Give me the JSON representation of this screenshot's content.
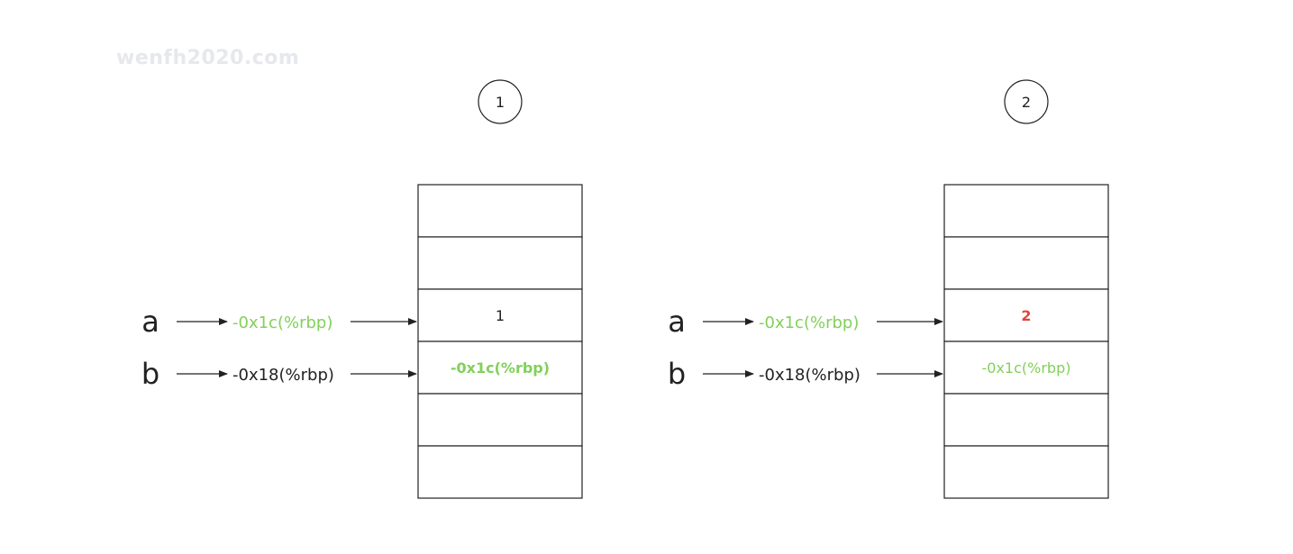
{
  "watermark": "wenfh2020.com",
  "colors": {
    "line": "#222222",
    "green": "#82d05a",
    "red": "#e0443b",
    "text": "#222222"
  },
  "panels": [
    {
      "step": "1",
      "rows": [
        {
          "label": "a",
          "address": "-0x1c(%rbp)",
          "address_color": "green"
        },
        {
          "label": "b",
          "address": "-0x18(%rbp)",
          "address_color": "text"
        }
      ],
      "cells": [
        {
          "text": "",
          "color": "text",
          "bold": false
        },
        {
          "text": "",
          "color": "text",
          "bold": false
        },
        {
          "text": "1",
          "color": "text",
          "bold": false
        },
        {
          "text": "-0x1c(%rbp)",
          "color": "green",
          "bold": true
        },
        {
          "text": "",
          "color": "text",
          "bold": false
        },
        {
          "text": "",
          "color": "text",
          "bold": false
        }
      ]
    },
    {
      "step": "2",
      "rows": [
        {
          "label": "a",
          "address": "-0x1c(%rbp)",
          "address_color": "green"
        },
        {
          "label": "b",
          "address": "-0x18(%rbp)",
          "address_color": "text"
        }
      ],
      "cells": [
        {
          "text": "",
          "color": "text",
          "bold": false
        },
        {
          "text": "",
          "color": "text",
          "bold": false
        },
        {
          "text": "2",
          "color": "red",
          "bold": true
        },
        {
          "text": "-0x1c(%rbp)",
          "color": "green",
          "bold": false
        },
        {
          "text": "",
          "color": "text",
          "bold": false
        },
        {
          "text": "",
          "color": "text",
          "bold": false
        }
      ]
    }
  ]
}
